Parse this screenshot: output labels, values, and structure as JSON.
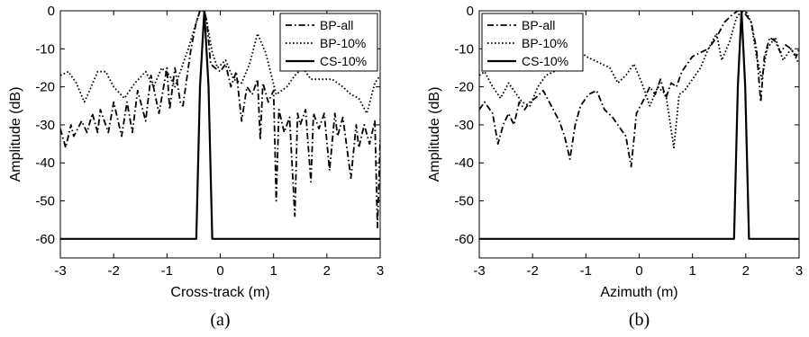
{
  "chart_data": [
    {
      "type": "line",
      "caption": "(a)",
      "xlabel": "Cross-track (m)",
      "ylabel": "Amplitude (dB)",
      "xlim": [
        -3,
        3
      ],
      "ylim": [
        -65,
        0
      ],
      "xticks": [
        -3,
        -2,
        -1,
        0,
        1,
        2,
        3
      ],
      "yticks": [
        0,
        -10,
        -20,
        -30,
        -40,
        -50,
        -60
      ],
      "legend_position": "top-right",
      "grid": false,
      "series": [
        {
          "name": "BP-all",
          "style": "dashdot",
          "x": [
            -3.0,
            -2.9,
            -2.8,
            -2.75,
            -2.6,
            -2.5,
            -2.4,
            -2.3,
            -2.25,
            -2.1,
            -2.0,
            -1.85,
            -1.75,
            -1.65,
            -1.55,
            -1.4,
            -1.3,
            -1.15,
            -1.0,
            -0.95,
            -0.85,
            -0.75,
            -0.7,
            -0.55,
            -0.45,
            -0.38,
            -0.3,
            -0.25,
            -0.18,
            -0.1,
            0.0,
            0.1,
            0.2,
            0.3,
            0.4,
            0.5,
            0.6,
            0.7,
            0.75,
            0.8,
            0.9,
            1.0,
            1.05,
            1.1,
            1.2,
            1.3,
            1.4,
            1.45,
            1.5,
            1.6,
            1.7,
            1.75,
            1.85,
            1.95,
            2.05,
            2.15,
            2.2,
            2.3,
            2.45,
            2.55,
            2.6,
            2.7,
            2.8,
            2.9,
            2.95,
            3.0
          ],
          "y": [
            -31,
            -36,
            -30,
            -33,
            -29,
            -32,
            -27,
            -32,
            -26,
            -32,
            -24,
            -33,
            -24,
            -32,
            -21,
            -29,
            -17,
            -27,
            -15,
            -26,
            -15,
            -24,
            -25,
            -10,
            -3,
            0,
            0,
            -3,
            -14,
            -15,
            -16,
            -14,
            -20,
            -16,
            -29,
            -20,
            -22,
            -18,
            -34,
            -19,
            -24,
            -21,
            -50,
            -26,
            -32,
            -28,
            -54,
            -27,
            -30,
            -26,
            -45,
            -27,
            -31,
            -27,
            -42,
            -27,
            -33,
            -28,
            -44,
            -30,
            -36,
            -30,
            -35,
            -29,
            -57,
            -34
          ]
        },
        {
          "name": "BP-10%",
          "style": "dotted",
          "x": [
            -3.0,
            -2.85,
            -2.7,
            -2.55,
            -2.45,
            -2.3,
            -2.15,
            -2.0,
            -1.8,
            -1.6,
            -1.4,
            -1.25,
            -1.1,
            -0.95,
            -0.85,
            -0.75,
            -0.6,
            -0.45,
            -0.38,
            -0.3,
            -0.25,
            -0.15,
            -0.05,
            0.1,
            0.25,
            0.4,
            0.55,
            0.7,
            0.85,
            1.05,
            1.25,
            1.4,
            1.55,
            1.7,
            1.9,
            2.1,
            2.3,
            2.45,
            2.6,
            2.75,
            2.9,
            3.0
          ],
          "y": [
            -17,
            -16,
            -19,
            -24,
            -21,
            -16,
            -16,
            -20,
            -23,
            -19,
            -16,
            -20,
            -15,
            -17,
            -20,
            -16,
            -10,
            -3,
            0,
            0,
            -3,
            -11,
            -15,
            -13,
            -18,
            -19,
            -14,
            -6,
            -11,
            -22,
            -20,
            -17,
            -15,
            -18,
            -18,
            -18,
            -20,
            -22,
            -23,
            -27,
            -19,
            -17
          ]
        },
        {
          "name": "CS-10%",
          "style": "solid",
          "x": [
            -3.0,
            -0.45,
            -0.38,
            -0.3,
            -0.22,
            -0.15,
            3.0
          ],
          "y": [
            -60,
            -60,
            -20,
            0,
            -20,
            -60,
            -60
          ]
        }
      ]
    },
    {
      "type": "line",
      "caption": "(b)",
      "xlabel": "Azimuth (m)",
      "ylabel": "Amplitude (dB)",
      "xlim": [
        -3,
        3
      ],
      "ylim": [
        -65,
        0
      ],
      "xticks": [
        -3,
        -2,
        -1,
        0,
        1,
        2,
        3
      ],
      "yticks": [
        0,
        -10,
        -20,
        -30,
        -40,
        -50,
        -60
      ],
      "legend_position": "top-left",
      "grid": false,
      "series": [
        {
          "name": "BP-all",
          "style": "dashdot",
          "x": [
            -3.0,
            -2.9,
            -2.75,
            -2.65,
            -2.55,
            -2.45,
            -2.35,
            -2.25,
            -2.15,
            -2.05,
            -1.95,
            -1.8,
            -1.65,
            -1.5,
            -1.4,
            -1.3,
            -1.2,
            -1.1,
            -0.95,
            -0.8,
            -0.65,
            -0.5,
            -0.4,
            -0.25,
            -0.15,
            -0.05,
            0.1,
            0.2,
            0.3,
            0.4,
            0.5,
            0.6,
            0.7,
            0.8,
            0.9,
            1.0,
            1.15,
            1.3,
            1.45,
            1.6,
            1.75,
            1.85,
            1.92,
            2.0,
            2.1,
            2.2,
            2.28,
            2.35,
            2.45,
            2.55,
            2.65,
            2.75,
            2.85,
            2.95,
            3.0
          ],
          "y": [
            -26,
            -24,
            -27,
            -35,
            -30,
            -27,
            -30,
            -24,
            -26,
            -24,
            -23,
            -21,
            -25,
            -29,
            -33,
            -39,
            -30,
            -25,
            -22,
            -21,
            -26,
            -28,
            -30,
            -33,
            -41,
            -27,
            -23,
            -20,
            -22,
            -18,
            -23,
            -19,
            -20,
            -16,
            -14,
            -12,
            -11,
            -10,
            -7,
            -3,
            -1,
            0,
            0,
            -1,
            -3,
            -10,
            -24,
            -12,
            -7,
            -8,
            -11,
            -9,
            -10,
            -12,
            -10
          ]
        },
        {
          "name": "BP-10%",
          "style": "dotted",
          "x": [
            -3.0,
            -2.9,
            -2.75,
            -2.6,
            -2.45,
            -2.35,
            -2.2,
            -2.05,
            -1.9,
            -1.75,
            -1.6,
            -1.45,
            -1.3,
            -1.15,
            -1.0,
            -0.85,
            -0.7,
            -0.55,
            -0.4,
            -0.25,
            -0.1,
            0.05,
            0.2,
            0.35,
            0.5,
            0.65,
            0.75,
            0.85,
            1.0,
            1.15,
            1.3,
            1.45,
            1.55,
            1.7,
            1.82,
            1.92,
            2.0,
            2.1,
            2.2,
            2.3,
            2.4,
            2.55,
            2.7,
            2.85,
            3.0
          ],
          "y": [
            -17,
            -16,
            -20,
            -23,
            -19,
            -21,
            -24,
            -25,
            -20,
            -17,
            -16,
            -14,
            -13,
            -10,
            -12,
            -13,
            -14,
            -15,
            -19,
            -17,
            -14,
            -19,
            -25,
            -20,
            -22,
            -36,
            -22,
            -21,
            -18,
            -15,
            -10,
            -6,
            -13,
            -8,
            -2,
            0,
            0,
            -3,
            -12,
            -18,
            -10,
            -7,
            -13,
            -10,
            -14
          ]
        },
        {
          "name": "CS-10%",
          "style": "solid",
          "x": [
            -3.0,
            1.78,
            1.85,
            1.92,
            1.99,
            2.06,
            3.0
          ],
          "y": [
            -60,
            -60,
            -20,
            0,
            -20,
            -60,
            -60
          ]
        }
      ]
    }
  ]
}
